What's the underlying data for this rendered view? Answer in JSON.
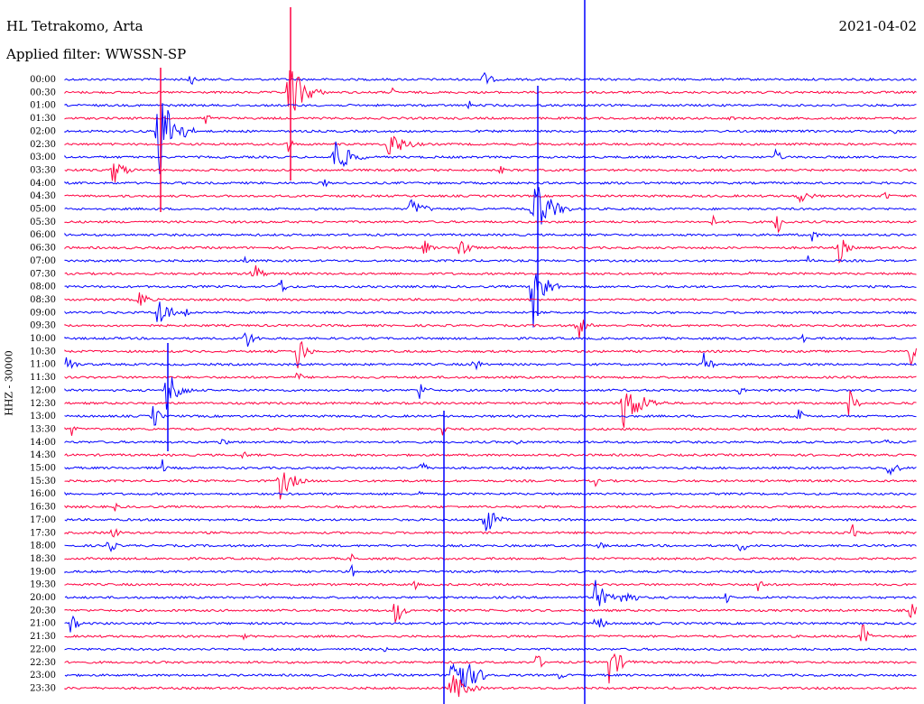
{
  "header": {
    "station": "HL Tetrakomo, Arta",
    "filter": "Applied filter: WWSSN-SP",
    "date": "2021-04-02",
    "channel": "HHZ - 30000"
  },
  "colors": {
    "blue": "#0000ff",
    "red": "#ff0040"
  },
  "time_labels": [
    "00:00",
    "00:30",
    "01:00",
    "01:30",
    "02:00",
    "02:30",
    "03:00",
    "03:30",
    "04:00",
    "04:30",
    "05:00",
    "05:30",
    "06:00",
    "06:30",
    "07:00",
    "07:30",
    "08:00",
    "08:30",
    "09:00",
    "09:30",
    "10:00",
    "10:30",
    "11:00",
    "11:30",
    "12:00",
    "12:30",
    "13:00",
    "13:30",
    "14:00",
    "14:30",
    "15:00",
    "15:30",
    "16:00",
    "16:30",
    "17:00",
    "17:30",
    "18:00",
    "18:30",
    "19:00",
    "19:30",
    "20:00",
    "20:30",
    "21:00",
    "21:30",
    "22:00",
    "22:30",
    "23:00",
    "23:30"
  ]
}
